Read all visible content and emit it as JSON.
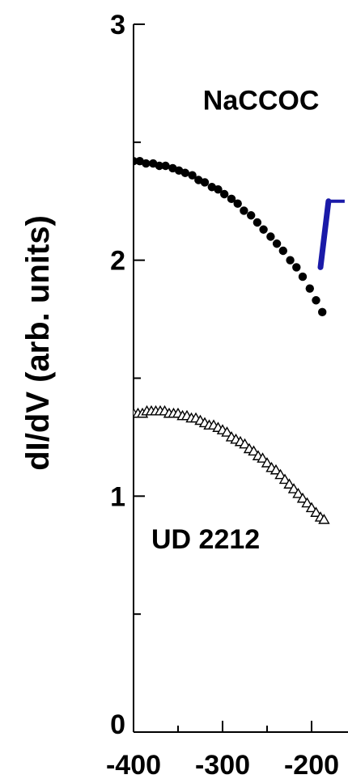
{
  "chart_data": {
    "type": "scatter",
    "ylabel": "dI/dV (arb. units)",
    "xlabel": "",
    "xlim": [
      -400,
      -185
    ],
    "ylim": [
      0,
      3
    ],
    "x_ticks": [
      -400,
      -300,
      -200
    ],
    "x_tick_labels": [
      "-400",
      "-300",
      "-200"
    ],
    "y_ticks": [
      0,
      1,
      2,
      3
    ],
    "y_tick_labels": [
      "0",
      "1",
      "2",
      "3"
    ],
    "y_minor_ticks": [
      0.5,
      1.5,
      2.5
    ],
    "grid": false,
    "annotations": [
      {
        "text": "NaCCOC",
        "x": -322,
        "y": 2.68
      },
      {
        "text": "UD 2212",
        "x": -380,
        "y": 0.82
      }
    ],
    "series": [
      {
        "marker": "filled-circle",
        "color": "#000000",
        "x": [
          -400,
          -393,
          -386,
          -378,
          -371,
          -364,
          -356,
          -349,
          -342,
          -334,
          -327,
          -320,
          -312,
          -305,
          -298,
          -290,
          -283,
          -276,
          -268,
          -261,
          -254,
          -246,
          -239,
          -232,
          -224,
          -217,
          -210,
          -202,
          -195,
          -188
        ],
        "y": [
          2.42,
          2.42,
          2.41,
          2.41,
          2.4,
          2.4,
          2.39,
          2.38,
          2.37,
          2.36,
          2.34,
          2.33,
          2.31,
          2.3,
          2.28,
          2.26,
          2.24,
          2.21,
          2.19,
          2.16,
          2.13,
          2.1,
          2.07,
          2.04,
          2.0,
          1.97,
          1.93,
          1.88,
          1.83,
          1.78
        ]
      },
      {
        "marker": "open-triangle",
        "color": "#000000",
        "x": [
          -400,
          -395,
          -390,
          -385,
          -380,
          -375,
          -370,
          -365,
          -360,
          -355,
          -350,
          -345,
          -340,
          -335,
          -330,
          -325,
          -320,
          -315,
          -310,
          -305,
          -300,
          -295,
          -290,
          -285,
          -280,
          -275,
          -270,
          -265,
          -260,
          -255,
          -250,
          -245,
          -240,
          -235,
          -230,
          -225,
          -220,
          -215,
          -210,
          -205,
          -200,
          -195,
          -190,
          -186
        ],
        "y": [
          1.35,
          1.35,
          1.35,
          1.36,
          1.36,
          1.36,
          1.36,
          1.36,
          1.35,
          1.35,
          1.35,
          1.34,
          1.34,
          1.33,
          1.33,
          1.32,
          1.31,
          1.3,
          1.3,
          1.29,
          1.28,
          1.27,
          1.25,
          1.24,
          1.23,
          1.22,
          1.2,
          1.19,
          1.17,
          1.16,
          1.14,
          1.12,
          1.11,
          1.09,
          1.07,
          1.05,
          1.03,
          1.01,
          0.99,
          0.97,
          0.95,
          0.93,
          0.91,
          0.9
        ]
      },
      {
        "marker": "line",
        "color": "#1a1aa8",
        "x": [
          -190,
          -181
        ],
        "y": [
          1.97,
          2.25
        ]
      }
    ]
  }
}
